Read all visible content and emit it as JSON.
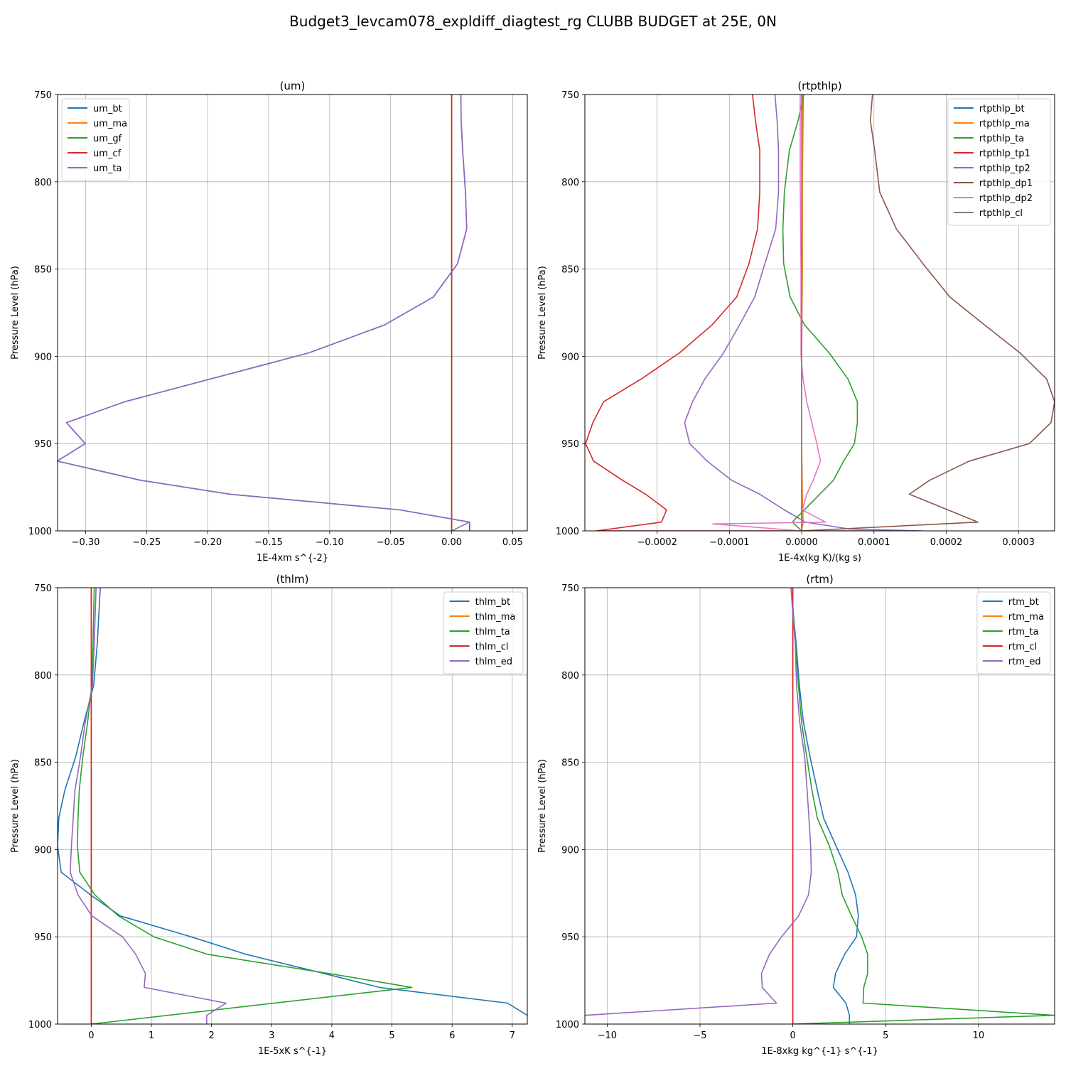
{
  "suptitle": "Budget3_levcam078_expldiff_diagtest_rg CLUBB BUDGET at 25E, 0N",
  "colors": {
    "c0": "#1f77b4",
    "c1": "#ff7f0e",
    "c2": "#2ca02c",
    "c3": "#d62728",
    "c4": "#9467bd",
    "c5": "#8c564b",
    "c6": "#e377c2",
    "c7": "#7f7f7f"
  },
  "chart_data": [
    {
      "type": "line",
      "title": "(um)",
      "xlabel": "1E-4xm s^{-2}",
      "ylabel": "Pressure Level (hPa)",
      "xlim": [
        -0.323,
        0.062
      ],
      "ylim": [
        1000,
        750
      ],
      "xticks": [
        -0.3,
        -0.25,
        -0.2,
        -0.15,
        -0.1,
        -0.05,
        0.0,
        0.05
      ],
      "xtick_labels": [
        "−0.30",
        "−0.25",
        "−0.20",
        "−0.15",
        "−0.10",
        "−0.05",
        "0.00",
        "0.05"
      ],
      "yticks": [
        750,
        800,
        850,
        900,
        950,
        1000
      ],
      "grid": true,
      "legend_loc": "upper-left",
      "series": [
        {
          "name": "um_bt",
          "color_key": "c0",
          "x": [
            0.0075,
            0.0078,
            0.009,
            0.0113,
            0.0123,
            0.0048,
            -0.015,
            -0.055,
            -0.117,
            -0.2679,
            -0.3157,
            -0.3003,
            -0.3233,
            -0.2549,
            -0.1817,
            -0.0423,
            0.0147,
            0.0147
          ],
          "y": [
            750,
            765,
            782,
            806,
            827,
            847,
            866,
            882,
            898,
            926,
            938,
            950,
            960,
            971,
            979,
            988,
            995,
            1000
          ]
        },
        {
          "name": "um_ma",
          "color_key": "c1",
          "x": [
            0,
            0
          ],
          "y": [
            750,
            1000
          ]
        },
        {
          "name": "um_gf",
          "color_key": "c2",
          "x": [
            0,
            0
          ],
          "y": [
            750,
            1000
          ]
        },
        {
          "name": "um_cf",
          "color_key": "c3",
          "x": [
            0,
            0
          ],
          "y": [
            750,
            1000
          ]
        },
        {
          "name": "um_ta",
          "color_key": "c4",
          "x": [
            0.0075,
            0.0078,
            0.009,
            0.0113,
            0.0123,
            0.0048,
            -0.015,
            -0.055,
            -0.117,
            -0.2679,
            -0.3157,
            -0.3003,
            -0.3233,
            -0.2549,
            -0.1817,
            -0.0423,
            0.0147,
            0
          ],
          "y": [
            750,
            765,
            782,
            806,
            827,
            847,
            866,
            882,
            898,
            926,
            938,
            950,
            960,
            971,
            979,
            988,
            995,
            1000
          ]
        }
      ]
    },
    {
      "type": "line",
      "title": "(rtpthlp)",
      "xlabel": "1E-4x(kg K)/(kg s)",
      "ylabel": "Pressure Level (hPa)",
      "xlim": [
        -0.0003,
        0.00035
      ],
      "ylim": [
        1000,
        750
      ],
      "xticks": [
        -0.0002,
        -0.0001,
        0.0,
        0.0001,
        0.0002,
        0.0003
      ],
      "xtick_labels": [
        "−0.0002",
        "−0.0001",
        "0.0000",
        "0.0001",
        "0.0002",
        "0.0003"
      ],
      "yticks": [
        750,
        800,
        850,
        900,
        950,
        1000
      ],
      "grid": true,
      "legend_loc": "upper-right",
      "series": [
        {
          "name": "rtpthlp_bt",
          "color_key": "c0",
          "x": [
            2e-06,
            1e-06,
            0.0,
            0.0,
            0.0,
            0.0,
            0.0,
            0.0
          ],
          "y": [
            750,
            800,
            850,
            900,
            950,
            980,
            995,
            1000
          ]
        },
        {
          "name": "rtpthlp_ma",
          "color_key": "c1",
          "x": [
            1e-06,
            1e-06,
            1e-06,
            0.0,
            0.0,
            1e-06,
            2e-06,
            0.0
          ],
          "y": [
            750,
            800,
            850,
            900,
            950,
            980,
            995,
            1000
          ]
        },
        {
          "name": "rtpthlp_ta",
          "color_key": "c2",
          "x": [
            3e-06,
            -5e-06,
            -1.7e-05,
            -2.4e-05,
            -2.6e-05,
            -2.5e-05,
            -1.6e-05,
            4e-06,
            3.8e-05,
            6.4e-05,
            7.7e-05,
            7.7e-05,
            7.3e-05,
            5.8e-05,
            4.4e-05,
            2.5e-05,
            -1.3e-05,
            0.0
          ],
          "y": [
            750,
            765,
            782,
            806,
            827,
            847,
            866,
            882,
            898,
            913,
            926,
            938,
            950,
            960,
            971,
            979,
            995,
            1000
          ]
        },
        {
          "name": "rtpthlp_tp1",
          "color_key": "c3",
          "x": [
            -6.8e-05,
            -6.4e-05,
            -5.8e-05,
            -5.8e-05,
            -6.1e-05,
            -7.3e-05,
            -9e-05,
            -0.000124,
            -0.000169,
            -0.000222,
            -0.000274,
            -0.000289,
            -0.000299,
            -0.000288,
            -0.000248,
            -0.000216,
            -0.000187,
            -0.000194,
            -0.000284,
            0.0
          ],
          "y": [
            750,
            765,
            782,
            806,
            827,
            847,
            866,
            882,
            898,
            913,
            926,
            938,
            950,
            960,
            971,
            979,
            988,
            995,
            1000,
            1000
          ]
        },
        {
          "name": "rtpthlp_tp2",
          "color_key": "c4",
          "x": [
            -3.7e-05,
            -3.4e-05,
            -3.2e-05,
            -3.2e-05,
            -3.6e-05,
            -5.1e-05,
            -6.5e-05,
            -8.6e-05,
            -0.000108,
            -0.000134,
            -0.000151,
            -0.000162,
            -0.000155,
            -0.000131,
            -9.7e-05,
            -5.8e-05,
            -2.4e-05,
            5e-06,
            6.7e-05,
            0.000166,
            0.0
          ],
          "y": [
            750,
            765,
            782,
            806,
            827,
            847,
            866,
            882,
            898,
            913,
            926,
            938,
            950,
            960,
            971,
            979,
            988,
            995,
            999,
            1000,
            1000
          ]
        },
        {
          "name": "rtpthlp_dp1",
          "color_key": "c5",
          "x": [
            9.8e-05,
            9.5e-05,
            0.000101,
            0.000108,
            0.000131,
            0.000168,
            0.000205,
            0.000253,
            0.000302,
            0.000339,
            0.00035,
            0.000345,
            0.000315,
            0.000232,
            0.000177,
            0.000149,
            0.000244,
            0.0
          ],
          "y": [
            750,
            765,
            782,
            806,
            827,
            847,
            866,
            882,
            898,
            913,
            926,
            938,
            950,
            960,
            971,
            979,
            995,
            1000
          ]
        },
        {
          "name": "rtpthlp_dp2",
          "color_key": "c6",
          "x": [
            -2e-06,
            -2e-06,
            -1e-06,
            -1e-06,
            2e-06,
            7e-06,
            1.4e-05,
            2.1e-05,
            2.6e-05,
            1.6e-05,
            7e-06,
            1e-06,
            3.3e-05,
            -0.000123,
            0.0
          ],
          "y": [
            750,
            800,
            850,
            900,
            913,
            926,
            938,
            950,
            960,
            971,
            979,
            988,
            995,
            996,
            1000
          ]
        },
        {
          "name": "rtpthlp_cl",
          "color_key": "c7",
          "x": [
            0.0,
            0.0
          ],
          "y": [
            750,
            1000
          ]
        }
      ]
    },
    {
      "type": "line",
      "title": "(thlm)",
      "xlabel": "1E-5xK s^{-1}",
      "ylabel": "Pressure Level (hPa)",
      "xlim": [
        -0.56,
        7.25
      ],
      "ylim": [
        1000,
        750
      ],
      "xticks": [
        0,
        1,
        2,
        3,
        4,
        5,
        6,
        7
      ],
      "xtick_labels": [
        "0",
        "1",
        "2",
        "3",
        "4",
        "5",
        "6",
        "7"
      ],
      "yticks": [
        750,
        800,
        850,
        900,
        950,
        1000
      ],
      "grid": true,
      "legend_loc": "upper-right",
      "series": [
        {
          "name": "thlm_bt",
          "color_key": "c0",
          "x": [
            0.15,
            0.1,
            0.04,
            -0.12,
            -0.26,
            -0.44,
            -0.54,
            -0.56,
            -0.5,
            -0.01,
            0.48,
            1.66,
            2.57,
            3.87,
            4.79,
            6.92,
            7.25
          ],
          "y": [
            750,
            782,
            806,
            827,
            847,
            866,
            882,
            898,
            913,
            926,
            938,
            950,
            960,
            971,
            979,
            988,
            995
          ]
        },
        {
          "name": "thlm_ma",
          "color_key": "c1",
          "x": [
            0,
            0
          ],
          "y": [
            750,
            1000
          ]
        },
        {
          "name": "thlm_ta",
          "color_key": "c2",
          "x": [
            0.05,
            0.03,
            0.01,
            -0.06,
            -0.14,
            -0.2,
            -0.22,
            -0.23,
            -0.19,
            0.06,
            0.45,
            1.04,
            1.93,
            3.95,
            5.33,
            0.0
          ],
          "y": [
            750,
            782,
            806,
            827,
            847,
            866,
            882,
            898,
            913,
            926,
            938,
            950,
            960,
            971,
            979,
            1000
          ]
        },
        {
          "name": "thlm_cl",
          "color_key": "c3",
          "x": [
            0,
            0
          ],
          "y": [
            750,
            1000
          ]
        },
        {
          "name": "thlm_ed",
          "color_key": "c4",
          "x": [
            0.08,
            0.05,
            0.02,
            -0.1,
            -0.18,
            -0.27,
            -0.3,
            -0.33,
            -0.35,
            -0.22,
            0.01,
            0.52,
            0.74,
            0.9,
            0.88,
            2.24,
            1.92,
            1.92
          ],
          "y": [
            750,
            782,
            806,
            827,
            847,
            866,
            882,
            898,
            913,
            926,
            938,
            950,
            960,
            971,
            979,
            988,
            995,
            1000
          ]
        }
      ]
    },
    {
      "type": "line",
      "title": "(rtm)",
      "xlabel": "1E-8xkg kg^{-1} s^{-1}",
      "ylabel": "Pressure Level (hPa)",
      "xlim": [
        -11.2,
        14.1
      ],
      "ylim": [
        1000,
        750
      ],
      "xticks": [
        -10,
        -5,
        0,
        5,
        10
      ],
      "xtick_labels": [
        "−10",
        "−5",
        "0",
        "5",
        "10"
      ],
      "yticks": [
        750,
        800,
        850,
        900,
        950,
        1000
      ],
      "grid": true,
      "legend_loc": "upper-right",
      "series": [
        {
          "name": "rtm_bt",
          "color_key": "c0",
          "x": [
            -0.1,
            0.03,
            0.18,
            0.35,
            0.57,
            0.93,
            1.32,
            1.66,
            2.33,
            2.97,
            3.38,
            3.53,
            3.43,
            2.79,
            2.3,
            2.18,
            2.86,
            3.05,
            3.05
          ],
          "y": [
            750,
            765,
            782,
            806,
            827,
            847,
            866,
            882,
            898,
            913,
            926,
            938,
            950,
            960,
            971,
            979,
            988,
            995,
            1000
          ]
        },
        {
          "name": "rtm_ma",
          "color_key": "c1",
          "x": [
            0,
            0
          ],
          "y": [
            750,
            1000
          ]
        },
        {
          "name": "rtm_ta",
          "color_key": "c2",
          "x": [
            -0.1,
            0.03,
            0.14,
            0.3,
            0.47,
            0.75,
            1.03,
            1.32,
            1.97,
            2.43,
            2.66,
            3.16,
            3.71,
            4.03,
            4.03,
            3.82,
            3.78,
            14.1,
            0.0
          ],
          "y": [
            750,
            765,
            782,
            806,
            827,
            847,
            866,
            882,
            898,
            913,
            926,
            938,
            950,
            960,
            971,
            979,
            988,
            995,
            1000
          ]
        },
        {
          "name": "rtm_cl",
          "color_key": "c3",
          "x": [
            0,
            0
          ],
          "y": [
            750,
            1000
          ]
        },
        {
          "name": "rtm_ed",
          "color_key": "c4",
          "x": [
            -0.1,
            0.0,
            0.13,
            0.2,
            0.37,
            0.64,
            0.77,
            0.87,
            0.96,
            0.99,
            0.84,
            0.31,
            -0.61,
            -1.26,
            -1.69,
            -1.65,
            -0.88,
            -11.2
          ],
          "y": [
            750,
            765,
            782,
            806,
            827,
            847,
            866,
            882,
            898,
            913,
            926,
            938,
            950,
            960,
            971,
            979,
            988,
            995
          ]
        }
      ]
    }
  ]
}
